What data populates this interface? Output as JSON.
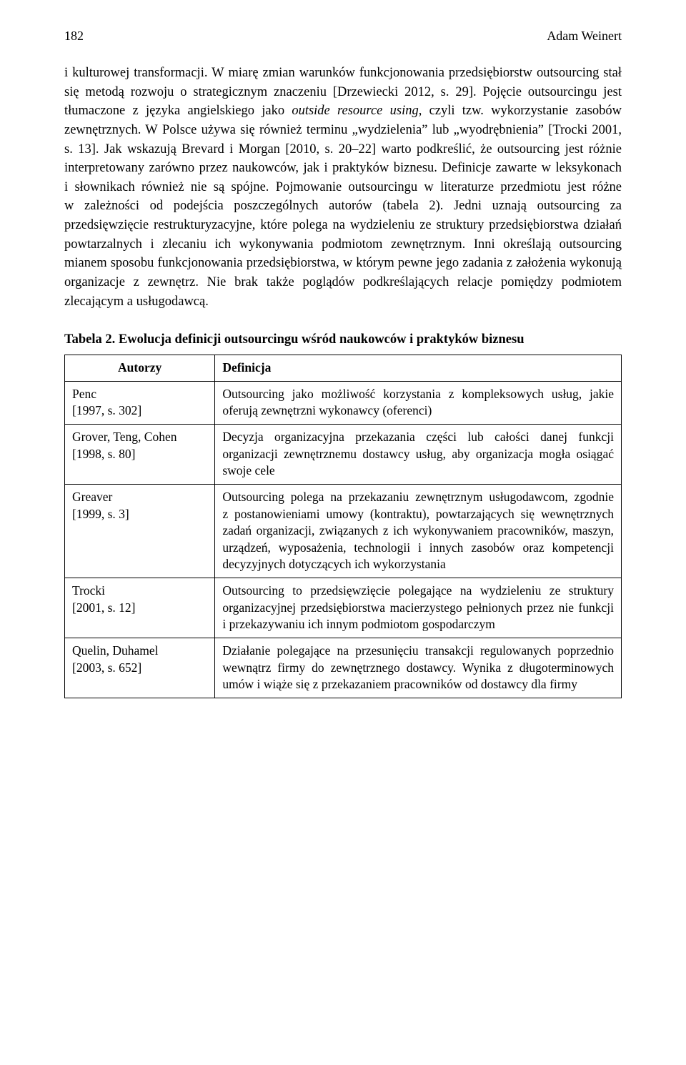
{
  "page_number": "182",
  "author_name": "Adam Weinert",
  "body_paragraph_html": "i kulturowej transformacji. W miarę zmian warunków funkcjonowania przedsiębiorstw outsourcing stał się metodą rozwoju o strategicznym znaczeniu [Drzewiecki 2012, s. 29]. Pojęcie outsourcingu jest tłumaczone z języka angielskiego jako <span class=\"italic\">outside resource using</span>, czyli tzw. wykorzystanie zasobów zewnętrznych. W Polsce używa się również terminu „wydzielenia” lub „wyodrębnienia” [Trocki 2001, s. 13]. Jak wskazują Brevard i Morgan [2010, s. 20–22] warto podkreślić, że outsourcing jest różnie interpretowany zarówno przez naukowców, jak i praktyków biznesu. Definicje zawarte w leksykonach i słownikach również nie są spójne. Pojmowanie outsourcingu w literaturze przedmiotu jest różne w zależności od podejścia poszczególnych autorów (tabela 2). Jedni uznają outsourcing za przedsięwzięcie restrukturyzacyjne, które polega na wydzieleniu ze struktury przedsiębiorstwa działań powtarzalnych i zlecaniu ich wykonywania podmiotom zewnętrznym. Inni określają outsourcing mianem sposobu funkcjonowania przedsiębiorstwa, w którym pewne jego zadania z założenia wykonują organizacje z zewnętrz. Nie brak także poglądów podkreślających relacje pomiędzy podmiotem zlecającym a usługodawcą.",
  "table_caption": "Tabela 2. Ewolucja definicji outsourcingu wśród naukowców i praktyków biznesu",
  "table": {
    "header_authors": "Autorzy",
    "header_definition": "Definicja",
    "rows": [
      {
        "author": "Penc\n[1997, s. 302]",
        "definition": "Outsourcing jako możliwość korzystania z kompleksowych usług, jakie oferują zewnętrzni wykonawcy (oferenci)"
      },
      {
        "author": "Grover, Teng, Cohen\n[1998, s. 80]",
        "definition": "Decyzja organizacyjna przekazania części lub całości danej funkcji organizacji zewnętrznemu dostawcy usług, aby organizacja mogła osiągać swoje cele"
      },
      {
        "author": "Greaver\n[1999, s. 3]",
        "definition": "Outsourcing polega na przekazaniu zewnętrznym usługodawcom, zgodnie z postanowieniami umowy (kontraktu), powtarzających się wewnętrznych zadań organizacji, związanych z ich wykonywaniem pracowników, maszyn, urządzeń, wyposażenia, technologii i innych zasobów oraz kompetencji decyzyjnych dotyczących ich wykorzystania"
      },
      {
        "author": "Trocki\n[2001, s. 12]",
        "definition": "Outsourcing to przedsięwzięcie polegające na wydzieleniu ze struktury organizacyjnej przedsiębiorstwa macierzystego pełnionych przez nie funkcji i przekazywaniu ich innym podmiotom gospodarczym"
      },
      {
        "author": "Quelin, Duhamel\n[2003, s. 652]",
        "definition": "Działanie polegające na przesunięciu transakcji regulowanych poprzednio wewnątrz firmy do zewnętrznego dostawcy. Wynika z długoterminowych umów i wiąże się z przekazaniem pracowników od dostawcy dla firmy"
      }
    ]
  }
}
